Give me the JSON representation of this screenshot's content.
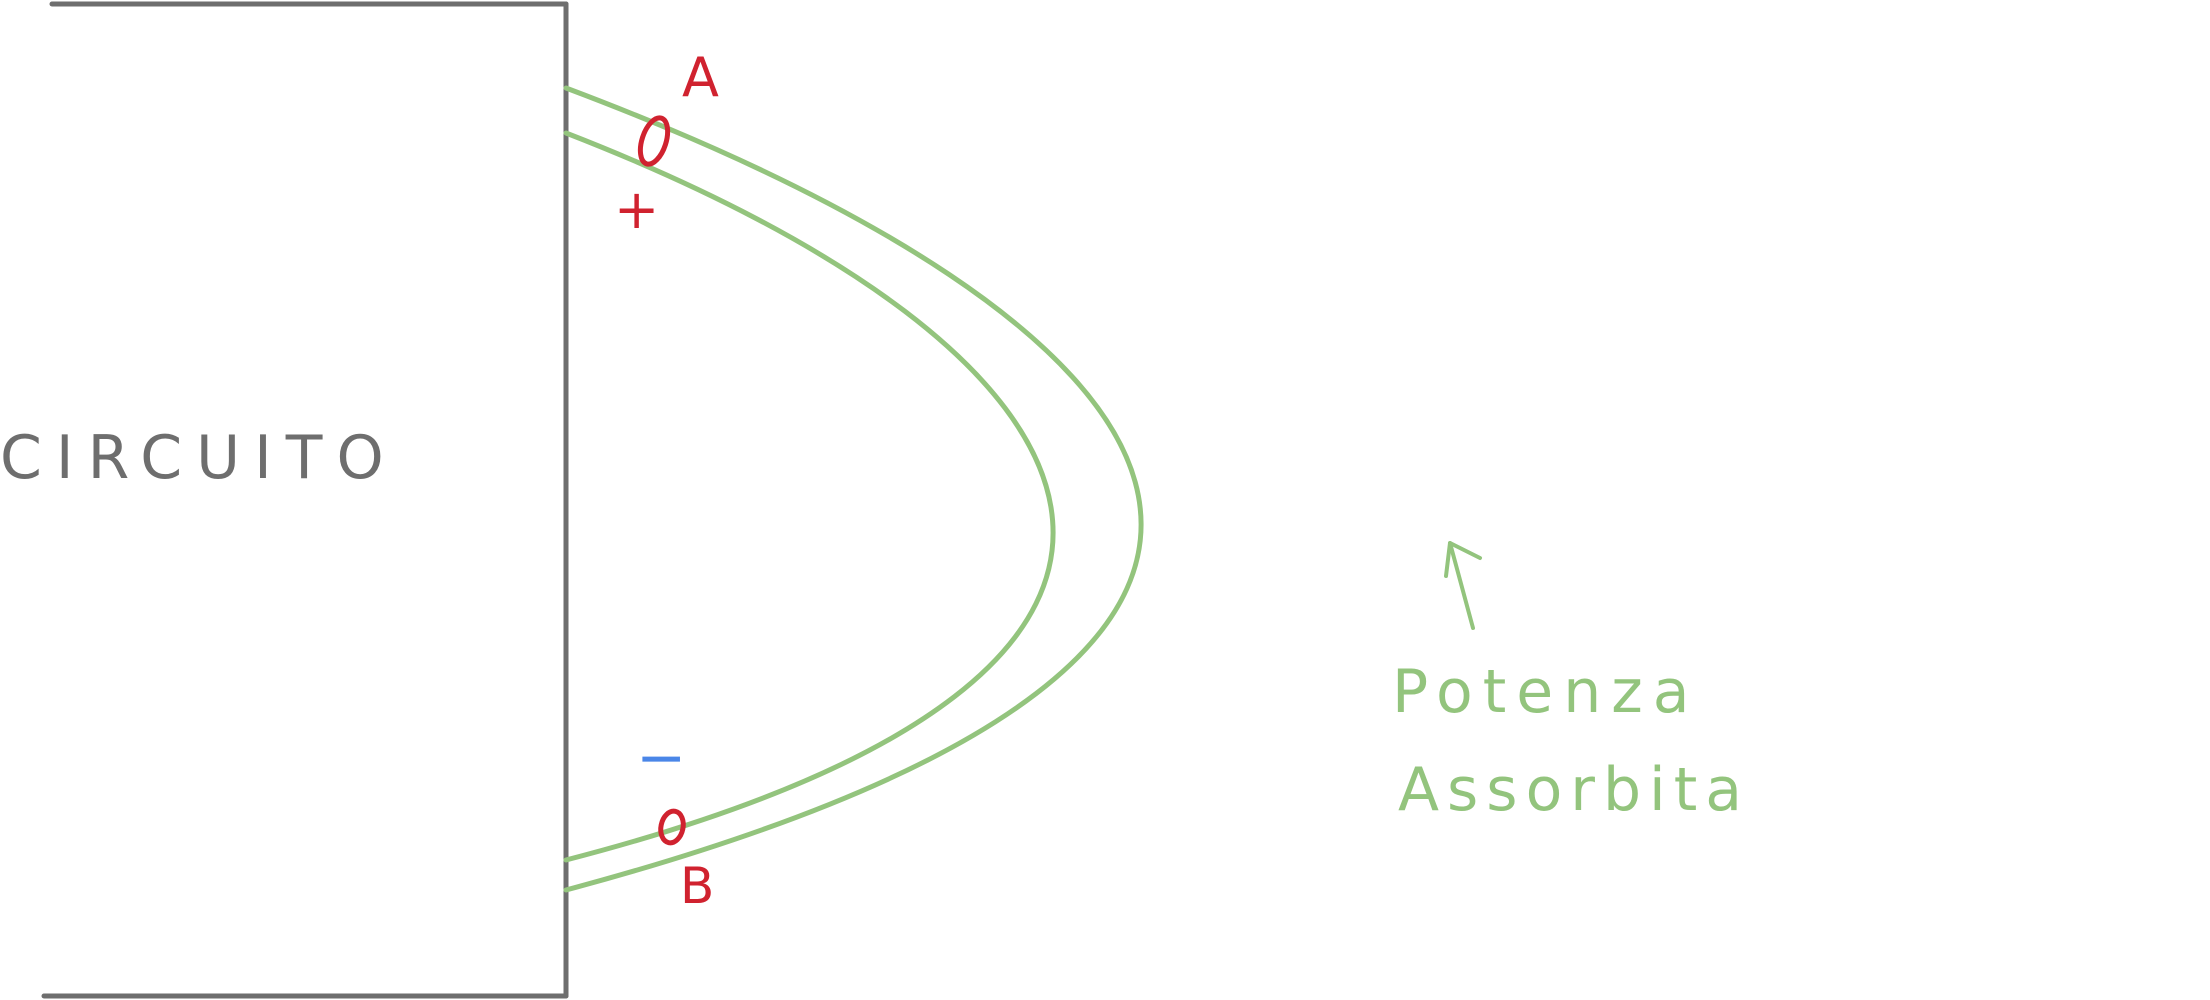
{
  "labels": {
    "circuit": "CIRCUITO",
    "terminal_a": "A",
    "terminal_b": "B",
    "plus": "+",
    "minus": "−",
    "note_line1": "Potenza",
    "note_line2": "Assorbita"
  },
  "colors": {
    "circuit": "#6e6e6e",
    "wire": "#93c47d",
    "terminal": "#d0222f",
    "minus": "#4a86e8",
    "note": "#93c47d"
  }
}
